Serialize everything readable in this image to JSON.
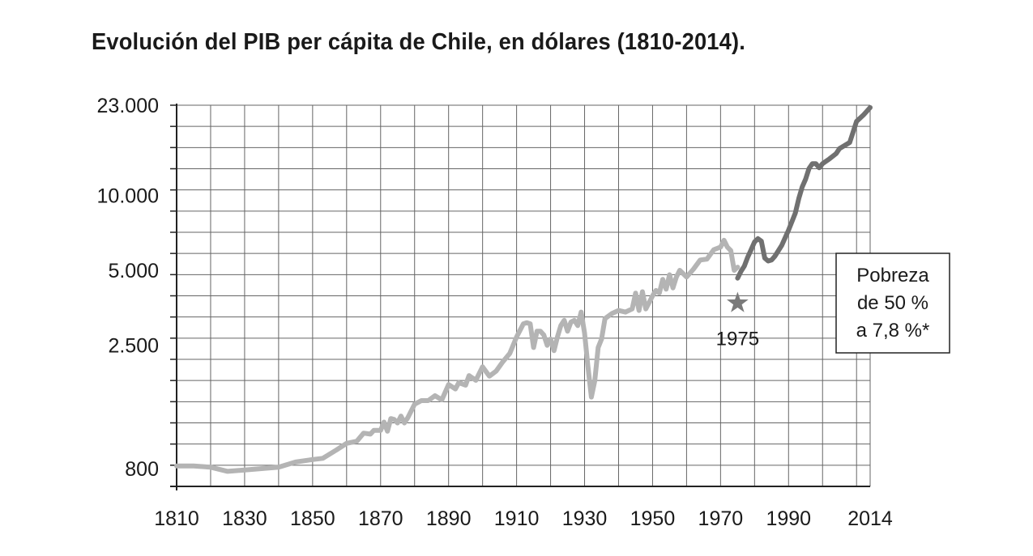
{
  "chart_data": {
    "type": "line",
    "title": "Evolución del PIB per cápita de Chile, en dólares (1810-2014).",
    "xlabel": "",
    "ylabel": "",
    "y_scale": "log",
    "xlim": [
      1810,
      2014
    ],
    "ylim": [
      700,
      23000
    ],
    "grid": true,
    "x_ticks": [
      1810,
      1830,
      1850,
      1870,
      1890,
      1910,
      1930,
      1950,
      1970,
      1990,
      2014
    ],
    "x_tick_labels": [
      "1810",
      "1830",
      "1850",
      "1870",
      "1890",
      "1910",
      "1930",
      "1950",
      "1970",
      "1990",
      "2014"
    ],
    "y_ticks": [
      800,
      2500,
      5000,
      10000,
      23000
    ],
    "y_tick_labels": [
      "800",
      "2.500",
      "5.000",
      "10.000",
      "23.000"
    ],
    "series": [
      {
        "color": "#b4b4b4",
        "x": [
          1810,
          1815,
          1820,
          1825,
          1830,
          1835,
          1840,
          1845,
          1850,
          1853,
          1857,
          1860,
          1863,
          1865,
          1867,
          1868,
          1870,
          1871,
          1872,
          1873,
          1874,
          1875,
          1876,
          1877,
          1878,
          1880,
          1882,
          1884,
          1886,
          1888,
          1890,
          1892,
          1893,
          1895,
          1896,
          1898,
          1900,
          1902,
          1904,
          1906,
          1908,
          1910,
          1912,
          1913,
          1914,
          1915,
          1916,
          1917,
          1918,
          1919,
          1920,
          1921,
          1922,
          1923,
          1924,
          1925,
          1926,
          1927,
          1928,
          1929,
          1930,
          1931,
          1932,
          1933,
          1934,
          1935,
          1936,
          1938,
          1940,
          1942,
          1944,
          1945,
          1946,
          1947,
          1948,
          1950,
          1951,
          1952,
          1953,
          1954,
          1955,
          1956,
          1957,
          1958,
          1960,
          1962,
          1964,
          1966,
          1968,
          1970,
          1971,
          1972,
          1973,
          1974,
          1975
        ],
        "y": [
          820,
          820,
          810,
          780,
          790,
          800,
          810,
          850,
          870,
          880,
          950,
          1010,
          1030,
          1110,
          1100,
          1140,
          1140,
          1230,
          1130,
          1270,
          1260,
          1220,
          1300,
          1220,
          1280,
          1450,
          1500,
          1500,
          1570,
          1510,
          1740,
          1670,
          1770,
          1730,
          1890,
          1810,
          2050,
          1880,
          1970,
          2150,
          2320,
          2700,
          3050,
          3080,
          3050,
          2450,
          2850,
          2850,
          2750,
          2500,
          2650,
          2380,
          2700,
          3000,
          3150,
          2850,
          3100,
          3150,
          3000,
          3400,
          2800,
          2050,
          1550,
          1800,
          2450,
          2650,
          3200,
          3350,
          3450,
          3400,
          3500,
          4050,
          3450,
          4100,
          3500,
          3950,
          4150,
          4050,
          4600,
          4200,
          4800,
          4250,
          4700,
          5000,
          4700,
          5050,
          5500,
          5550,
          6050,
          6200,
          6600,
          6200,
          6000,
          5000,
          5150
        ]
      },
      {
        "color": "#707070",
        "x": [
          1975,
          1976,
          1977,
          1978,
          1979,
          1980,
          1981,
          1982,
          1983,
          1984,
          1985,
          1986,
          1988,
          1990,
          1992,
          1993,
          1994,
          1995,
          1996,
          1997,
          1998,
          1999,
          2000,
          2002,
          2004,
          2005,
          2008,
          2010,
          2012,
          2014
        ],
        "y": [
          4650,
          4950,
          5200,
          5650,
          6050,
          6500,
          6700,
          6550,
          5600,
          5450,
          5500,
          5700,
          6300,
          7250,
          8500,
          9700,
          10800,
          11600,
          12800,
          13400,
          13400,
          12900,
          13400,
          14000,
          14700,
          15400,
          16300,
          19800,
          21000,
          22500
        ]
      }
    ],
    "annotations": [
      {
        "type": "star",
        "x": 1975,
        "y": 3750,
        "label": "1975",
        "color": "#7a7a7a"
      },
      {
        "type": "box",
        "lines": [
          "Pobreza",
          "de 50 %",
          "a 7,8 %*"
        ]
      }
    ]
  }
}
